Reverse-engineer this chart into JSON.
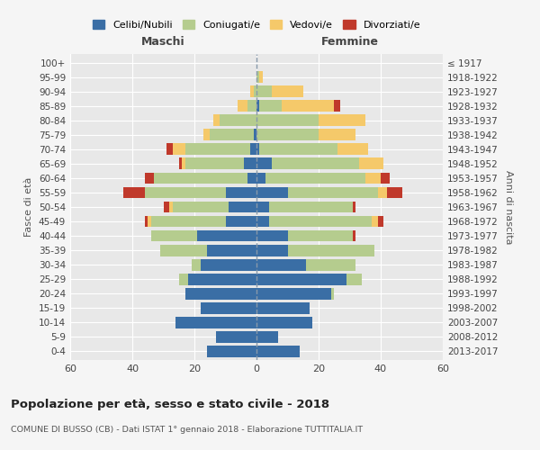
{
  "age_groups": [
    "0-4",
    "5-9",
    "10-14",
    "15-19",
    "20-24",
    "25-29",
    "30-34",
    "35-39",
    "40-44",
    "45-49",
    "50-54",
    "55-59",
    "60-64",
    "65-69",
    "70-74",
    "75-79",
    "80-84",
    "85-89",
    "90-94",
    "95-99",
    "100+"
  ],
  "birth_years": [
    "2013-2017",
    "2008-2012",
    "2003-2007",
    "1998-2002",
    "1993-1997",
    "1988-1992",
    "1983-1987",
    "1978-1982",
    "1973-1977",
    "1968-1972",
    "1963-1967",
    "1958-1962",
    "1953-1957",
    "1948-1952",
    "1943-1947",
    "1938-1942",
    "1933-1937",
    "1928-1932",
    "1923-1927",
    "1918-1922",
    "≤ 1917"
  ],
  "colors": {
    "celibi": "#3a6ea5",
    "coniugati": "#b5cc8e",
    "vedovi": "#f5c96a",
    "divorziati": "#c0392b",
    "fig_bg": "#f5f5f5",
    "ax_bg": "#e8e8e8",
    "grid": "#ffffff",
    "dashed_line": "#8899aa"
  },
  "maschi": {
    "celibi": [
      16,
      13,
      26,
      18,
      23,
      22,
      18,
      16,
      19,
      10,
      9,
      10,
      3,
      4,
      2,
      1,
      0,
      0,
      0,
      0,
      0
    ],
    "coniugati": [
      0,
      0,
      0,
      0,
      0,
      3,
      3,
      15,
      15,
      24,
      18,
      26,
      30,
      19,
      21,
      14,
      12,
      3,
      1,
      0,
      0
    ],
    "vedovi": [
      0,
      0,
      0,
      0,
      0,
      0,
      0,
      0,
      0,
      1,
      1,
      0,
      0,
      1,
      4,
      2,
      2,
      3,
      1,
      0,
      0
    ],
    "divorziati": [
      0,
      0,
      0,
      0,
      0,
      0,
      0,
      0,
      0,
      1,
      2,
      7,
      3,
      1,
      2,
      0,
      0,
      0,
      0,
      0,
      0
    ]
  },
  "femmine": {
    "celibi": [
      14,
      7,
      18,
      17,
      24,
      29,
      16,
      10,
      10,
      4,
      4,
      10,
      3,
      5,
      1,
      0,
      0,
      1,
      0,
      0,
      0
    ],
    "coniugati": [
      0,
      0,
      0,
      0,
      1,
      5,
      16,
      28,
      21,
      33,
      27,
      29,
      32,
      28,
      25,
      20,
      20,
      7,
      5,
      1,
      0
    ],
    "vedovi": [
      0,
      0,
      0,
      0,
      0,
      0,
      0,
      0,
      0,
      2,
      0,
      3,
      5,
      8,
      10,
      12,
      15,
      17,
      10,
      1,
      0
    ],
    "divorziati": [
      0,
      0,
      0,
      0,
      0,
      0,
      0,
      0,
      1,
      2,
      1,
      5,
      3,
      0,
      0,
      0,
      0,
      2,
      0,
      0,
      0
    ]
  },
  "title": "Popolazione per età, sesso e stato civile - 2018",
  "subtitle": "COMUNE DI BUSSO (CB) - Dati ISTAT 1° gennaio 2018 - Elaborazione TUTTITALIA.IT",
  "xlabel_left": "Maschi",
  "xlabel_right": "Femmine",
  "ylabel_left": "Fasce di età",
  "ylabel_right": "Anni di nascita",
  "xlim": 60,
  "legend_labels": [
    "Celibi/Nubili",
    "Coniugati/e",
    "Vedovi/e",
    "Divorziati/e"
  ]
}
